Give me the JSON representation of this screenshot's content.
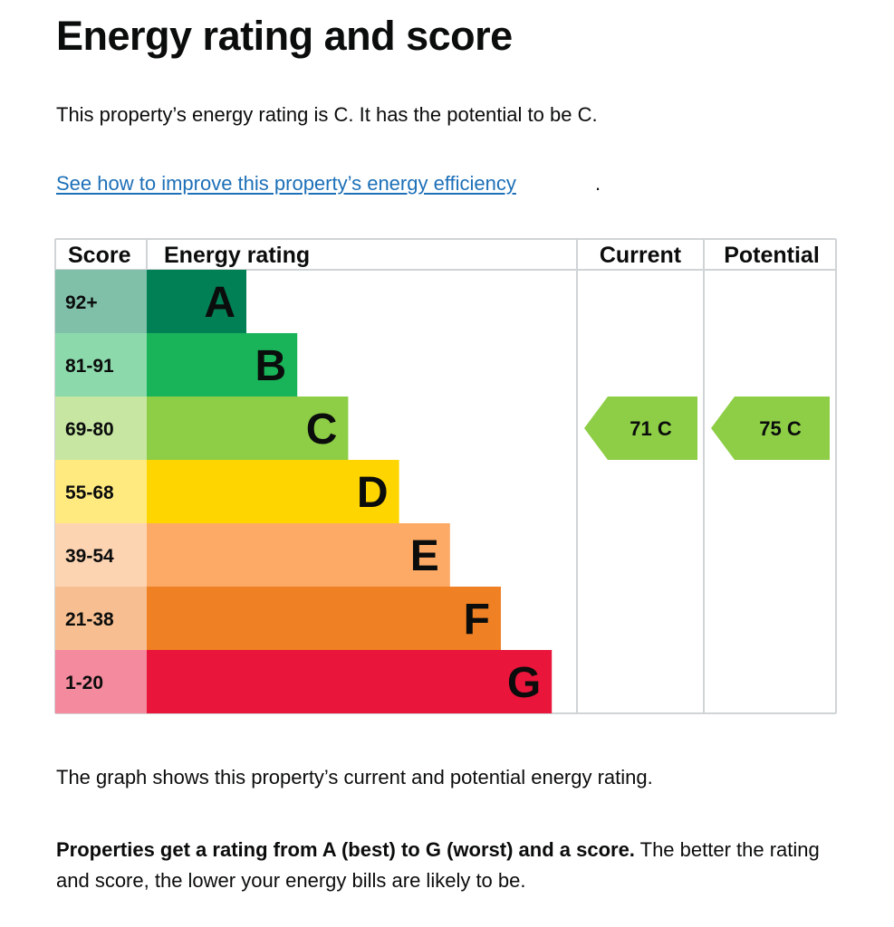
{
  "page": {
    "title": "Energy rating and score",
    "intro": "This property’s energy rating is C. It has the potential to be C.",
    "link_text": "See how to improve this property’s energy efficiency",
    "link_suffix": ".",
    "caption": "The graph shows this property’s current and potential energy rating.",
    "explain_bold": "Properties get a rating from A (best) to G (worst) and a score.",
    "explain_rest": " The better the rating and score, the lower your energy bills are likely to be."
  },
  "chart_data": {
    "type": "bar",
    "headers": {
      "score": "Score",
      "rating": "Energy rating",
      "current": "Current",
      "potential": "Potential"
    },
    "bands": [
      {
        "letter": "A",
        "score_range": "92+",
        "color": "#008054",
        "score_color": "#80c0a9"
      },
      {
        "letter": "B",
        "score_range": "81-91",
        "color": "#19b459",
        "score_color": "#8cd9ac"
      },
      {
        "letter": "C",
        "score_range": "69-80",
        "color": "#8dce46",
        "score_color": "#c6e6a2"
      },
      {
        "letter": "D",
        "score_range": "55-68",
        "color": "#ffd500",
        "score_color": "#ffea80"
      },
      {
        "letter": "E",
        "score_range": "39-54",
        "color": "#fcaa65",
        "score_color": "#fdd4b2"
      },
      {
        "letter": "F",
        "score_range": "21-38",
        "color": "#ef8023",
        "score_color": "#f7bf91"
      },
      {
        "letter": "G",
        "score_range": "1-20",
        "color": "#e9153b",
        "score_color": "#f48a9d"
      }
    ],
    "current": {
      "score": 71,
      "band": "C",
      "label": "71 C"
    },
    "potential": {
      "score": 75,
      "band": "C",
      "label": "75 C"
    }
  }
}
